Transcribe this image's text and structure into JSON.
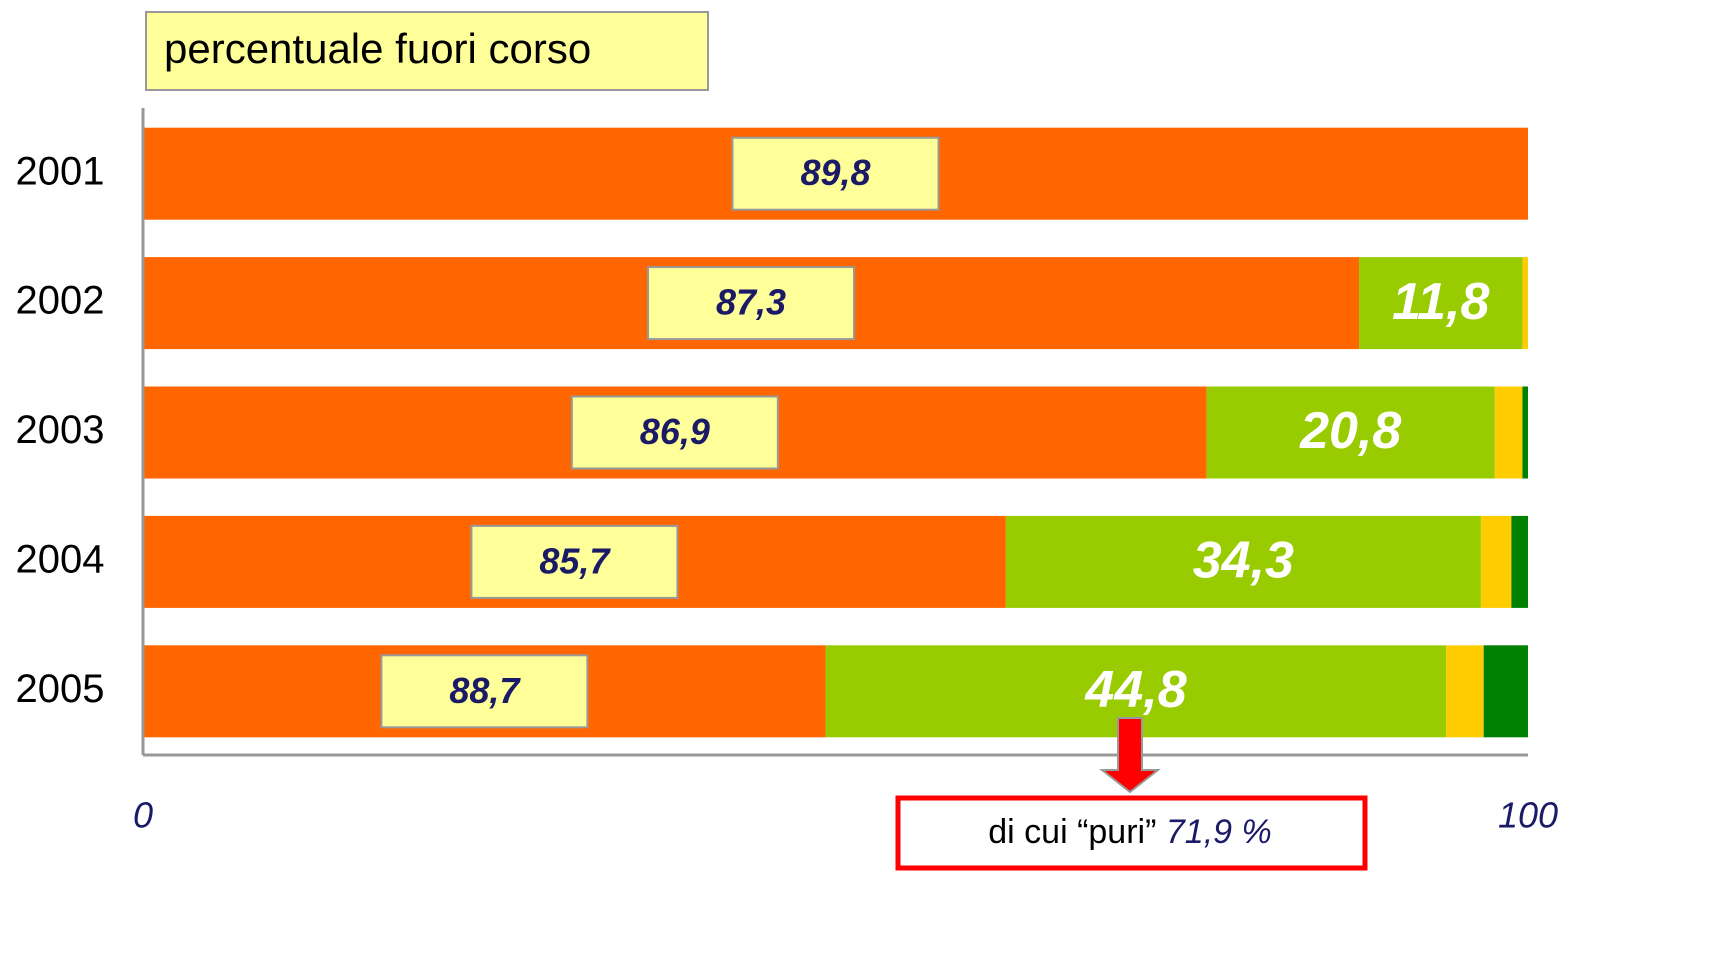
{
  "chart_data": {
    "type": "stacked_barh",
    "title": "percentuale fuori corso",
    "categories": [
      "2001",
      "2002",
      "2003",
      "2004",
      "2005"
    ],
    "series": [
      {
        "color": "#ff6600",
        "values": [
          100,
          87.8,
          76.8,
          62.3,
          49.3
        ]
      },
      {
        "color": "#99cc00",
        "values": [
          null,
          11.8,
          20.8,
          34.3,
          44.8
        ],
        "value_labels": [
          null,
          "11,8",
          "20,8",
          "34,3",
          "44,8"
        ]
      },
      {
        "color": "#ffcc00",
        "values": [
          null,
          0.4,
          2.0,
          2.2,
          2.7
        ]
      },
      {
        "color": "#008000",
        "values": [
          null,
          null,
          0.4,
          1.2,
          3.2
        ]
      }
    ],
    "annotations": [
      "89,8",
      "87,3",
      "86,9",
      "85,7",
      "88,7"
    ],
    "callout": {
      "text": "di cui “puri”",
      "value": "71,9 %"
    },
    "xlim": [
      0,
      100
    ],
    "xticks": [
      0,
      100
    ],
    "grid": false
  }
}
